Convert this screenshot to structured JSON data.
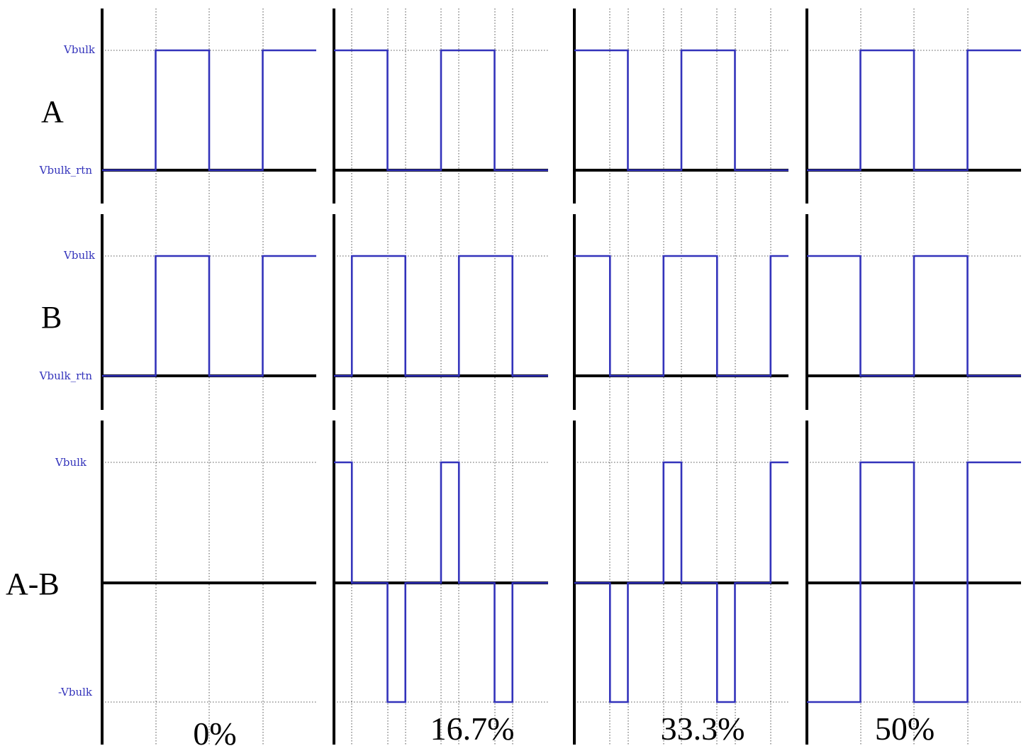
{
  "colors": {
    "wave": "#3333bb",
    "axis": "#000000",
    "grid": "#222222"
  },
  "rows": [
    {
      "id": "A",
      "label": "A",
      "levels": [
        "Vbulk",
        "Vbulk_rtn"
      ]
    },
    {
      "id": "B",
      "label": "B",
      "levels": [
        "Vbulk",
        "Vbulk_rtn"
      ]
    },
    {
      "id": "AB",
      "label": "A-B",
      "levels": [
        "Vbulk",
        "-Vbulk"
      ]
    }
  ],
  "columns": [
    {
      "label": "0%",
      "phase_shift": 0
    },
    {
      "label": "16.7%",
      "phase_shift": 0.167
    },
    {
      "label": "33.3%",
      "phase_shift": 0.333
    },
    {
      "label": "50%",
      "phase_shift": 0.5
    }
  ]
}
